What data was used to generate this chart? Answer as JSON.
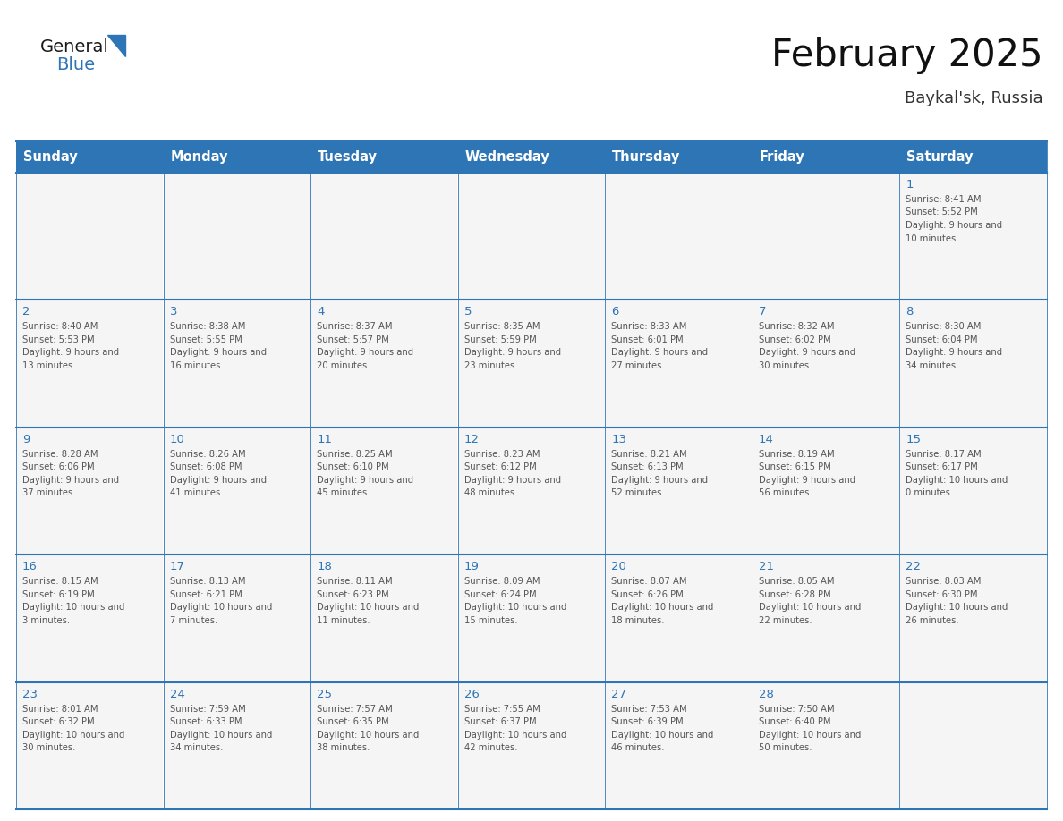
{
  "title": "February 2025",
  "subtitle": "Baykal'sk, Russia",
  "header_bg": "#2E75B6",
  "header_text_color": "#FFFFFF",
  "day_names": [
    "Sunday",
    "Monday",
    "Tuesday",
    "Wednesday",
    "Thursday",
    "Friday",
    "Saturday"
  ],
  "days": [
    {
      "day": 1,
      "col": 6,
      "row": 0,
      "sunrise": "8:41 AM",
      "sunset": "5:52 PM",
      "daylight": "9 hours and 10 minutes."
    },
    {
      "day": 2,
      "col": 0,
      "row": 1,
      "sunrise": "8:40 AM",
      "sunset": "5:53 PM",
      "daylight": "9 hours and 13 minutes."
    },
    {
      "day": 3,
      "col": 1,
      "row": 1,
      "sunrise": "8:38 AM",
      "sunset": "5:55 PM",
      "daylight": "9 hours and 16 minutes."
    },
    {
      "day": 4,
      "col": 2,
      "row": 1,
      "sunrise": "8:37 AM",
      "sunset": "5:57 PM",
      "daylight": "9 hours and 20 minutes."
    },
    {
      "day": 5,
      "col": 3,
      "row": 1,
      "sunrise": "8:35 AM",
      "sunset": "5:59 PM",
      "daylight": "9 hours and 23 minutes."
    },
    {
      "day": 6,
      "col": 4,
      "row": 1,
      "sunrise": "8:33 AM",
      "sunset": "6:01 PM",
      "daylight": "9 hours and 27 minutes."
    },
    {
      "day": 7,
      "col": 5,
      "row": 1,
      "sunrise": "8:32 AM",
      "sunset": "6:02 PM",
      "daylight": "9 hours and 30 minutes."
    },
    {
      "day": 8,
      "col": 6,
      "row": 1,
      "sunrise": "8:30 AM",
      "sunset": "6:04 PM",
      "daylight": "9 hours and 34 minutes."
    },
    {
      "day": 9,
      "col": 0,
      "row": 2,
      "sunrise": "8:28 AM",
      "sunset": "6:06 PM",
      "daylight": "9 hours and 37 minutes."
    },
    {
      "day": 10,
      "col": 1,
      "row": 2,
      "sunrise": "8:26 AM",
      "sunset": "6:08 PM",
      "daylight": "9 hours and 41 minutes."
    },
    {
      "day": 11,
      "col": 2,
      "row": 2,
      "sunrise": "8:25 AM",
      "sunset": "6:10 PM",
      "daylight": "9 hours and 45 minutes."
    },
    {
      "day": 12,
      "col": 3,
      "row": 2,
      "sunrise": "8:23 AM",
      "sunset": "6:12 PM",
      "daylight": "9 hours and 48 minutes."
    },
    {
      "day": 13,
      "col": 4,
      "row": 2,
      "sunrise": "8:21 AM",
      "sunset": "6:13 PM",
      "daylight": "9 hours and 52 minutes."
    },
    {
      "day": 14,
      "col": 5,
      "row": 2,
      "sunrise": "8:19 AM",
      "sunset": "6:15 PM",
      "daylight": "9 hours and 56 minutes."
    },
    {
      "day": 15,
      "col": 6,
      "row": 2,
      "sunrise": "8:17 AM",
      "sunset": "6:17 PM",
      "daylight": "10 hours and 0 minutes."
    },
    {
      "day": 16,
      "col": 0,
      "row": 3,
      "sunrise": "8:15 AM",
      "sunset": "6:19 PM",
      "daylight": "10 hours and 3 minutes."
    },
    {
      "day": 17,
      "col": 1,
      "row": 3,
      "sunrise": "8:13 AM",
      "sunset": "6:21 PM",
      "daylight": "10 hours and 7 minutes."
    },
    {
      "day": 18,
      "col": 2,
      "row": 3,
      "sunrise": "8:11 AM",
      "sunset": "6:23 PM",
      "daylight": "10 hours and 11 minutes."
    },
    {
      "day": 19,
      "col": 3,
      "row": 3,
      "sunrise": "8:09 AM",
      "sunset": "6:24 PM",
      "daylight": "10 hours and 15 minutes."
    },
    {
      "day": 20,
      "col": 4,
      "row": 3,
      "sunrise": "8:07 AM",
      "sunset": "6:26 PM",
      "daylight": "10 hours and 18 minutes."
    },
    {
      "day": 21,
      "col": 5,
      "row": 3,
      "sunrise": "8:05 AM",
      "sunset": "6:28 PM",
      "daylight": "10 hours and 22 minutes."
    },
    {
      "day": 22,
      "col": 6,
      "row": 3,
      "sunrise": "8:03 AM",
      "sunset": "6:30 PM",
      "daylight": "10 hours and 26 minutes."
    },
    {
      "day": 23,
      "col": 0,
      "row": 4,
      "sunrise": "8:01 AM",
      "sunset": "6:32 PM",
      "daylight": "10 hours and 30 minutes."
    },
    {
      "day": 24,
      "col": 1,
      "row": 4,
      "sunrise": "7:59 AM",
      "sunset": "6:33 PM",
      "daylight": "10 hours and 34 minutes."
    },
    {
      "day": 25,
      "col": 2,
      "row": 4,
      "sunrise": "7:57 AM",
      "sunset": "6:35 PM",
      "daylight": "10 hours and 38 minutes."
    },
    {
      "day": 26,
      "col": 3,
      "row": 4,
      "sunrise": "7:55 AM",
      "sunset": "6:37 PM",
      "daylight": "10 hours and 42 minutes."
    },
    {
      "day": 27,
      "col": 4,
      "row": 4,
      "sunrise": "7:53 AM",
      "sunset": "6:39 PM",
      "daylight": "10 hours and 46 minutes."
    },
    {
      "day": 28,
      "col": 5,
      "row": 4,
      "sunrise": "7:50 AM",
      "sunset": "6:40 PM",
      "daylight": "10 hours and 50 minutes."
    }
  ],
  "num_rows": 5,
  "num_cols": 7,
  "logo_general_color": "#1a1a1a",
  "logo_blue_color": "#2E75B6",
  "bg_color": "#FFFFFF",
  "cell_line_color": "#2E75B6",
  "day_num_color": "#2E75B6",
  "cell_text_color": "#555555",
  "header_font_size": 10.5,
  "day_num_font_size": 9.5,
  "cell_text_font_size": 7.2,
  "title_font_size": 30,
  "subtitle_font_size": 13,
  "logo_font_size": 14,
  "cell_bg_color": "#f5f5f5",
  "border_color": "#2E75B6"
}
